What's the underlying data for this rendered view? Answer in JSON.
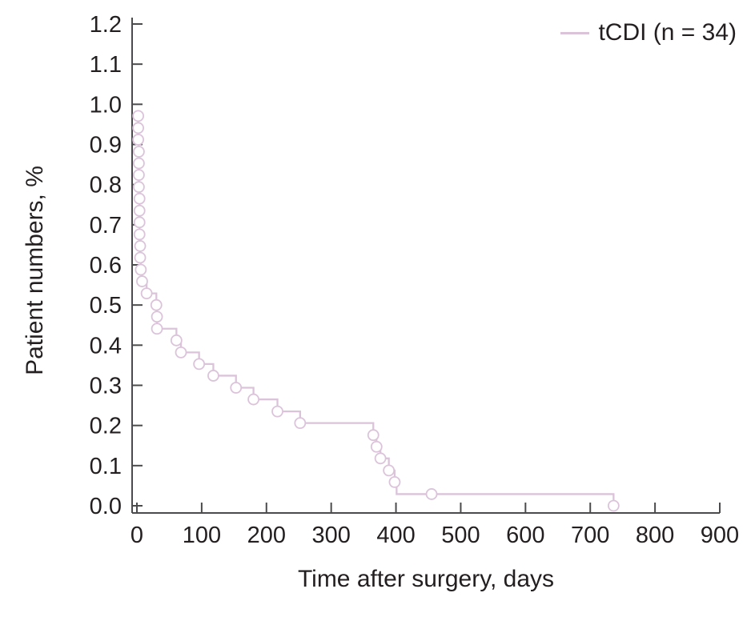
{
  "chart_data": {
    "type": "line",
    "subtype": "kaplan_meier_step",
    "title": "",
    "xlabel": "Time after surgery, days",
    "ylabel": "Patient numbers, %",
    "xlim": [
      0,
      900
    ],
    "ylim": [
      0,
      1.2
    ],
    "xticks": [
      0,
      100,
      200,
      300,
      400,
      500,
      600,
      700,
      800,
      900
    ],
    "yticks": [
      0.0,
      0.1,
      0.2,
      0.3,
      0.4,
      0.5,
      0.6,
      0.7,
      0.8,
      0.9,
      1.0,
      1.1,
      1.2
    ],
    "grid": false,
    "axis_color": "#4b4b4d",
    "text_color": "#231f20",
    "legend": {
      "position": "top-right",
      "entries": [
        {
          "label": "tCDI (n = 34)",
          "color": "#dbc4da"
        }
      ]
    },
    "series": [
      {
        "name": "tCDI",
        "n": 34,
        "color": "#dbc4da",
        "marker": "open-circle",
        "points": [
          {
            "x": 2,
            "y": 0.971,
            "marker": true
          },
          {
            "x": 2,
            "y": 0.941,
            "marker": true
          },
          {
            "x": 2,
            "y": 0.912,
            "marker": true
          },
          {
            "x": 3,
            "y": 0.882,
            "marker": true
          },
          {
            "x": 3,
            "y": 0.853,
            "marker": true
          },
          {
            "x": 3,
            "y": 0.824,
            "marker": true
          },
          {
            "x": 3,
            "y": 0.794,
            "marker": true
          },
          {
            "x": 4,
            "y": 0.765,
            "marker": true
          },
          {
            "x": 4,
            "y": 0.735,
            "marker": true
          },
          {
            "x": 4,
            "y": 0.706,
            "marker": true
          },
          {
            "x": 4,
            "y": 0.676,
            "marker": true
          },
          {
            "x": 5,
            "y": 0.647,
            "marker": true
          },
          {
            "x": 5,
            "y": 0.618,
            "marker": true
          },
          {
            "x": 6,
            "y": 0.588,
            "marker": true
          },
          {
            "x": 8,
            "y": 0.559,
            "marker": true
          },
          {
            "x": 15,
            "y": 0.529,
            "marker": true
          },
          {
            "x": 30,
            "y": 0.5,
            "marker": true
          },
          {
            "x": 31,
            "y": 0.471,
            "marker": true
          },
          {
            "x": 31,
            "y": 0.441,
            "marker": true
          },
          {
            "x": 61,
            "y": 0.412,
            "marker": true
          },
          {
            "x": 68,
            "y": 0.382,
            "marker": true
          },
          {
            "x": 96,
            "y": 0.353,
            "marker": true
          },
          {
            "x": 118,
            "y": 0.324,
            "marker": true
          },
          {
            "x": 153,
            "y": 0.294,
            "marker": true
          },
          {
            "x": 180,
            "y": 0.265,
            "marker": true
          },
          {
            "x": 217,
            "y": 0.235,
            "marker": true
          },
          {
            "x": 252,
            "y": 0.206,
            "marker": true
          },
          {
            "x": 365,
            "y": 0.176,
            "marker": true
          },
          {
            "x": 370,
            "y": 0.147,
            "marker": true
          },
          {
            "x": 376,
            "y": 0.118,
            "marker": true
          },
          {
            "x": 389,
            "y": 0.088,
            "marker": true
          },
          {
            "x": 398,
            "y": 0.059,
            "marker": true
          },
          {
            "x": 401,
            "y": 0.029,
            "marker": false
          },
          {
            "x": 736,
            "y": 0.0,
            "marker": true
          }
        ],
        "extra_markers": [
          {
            "x": 455,
            "y": 0.029
          }
        ]
      }
    ]
  }
}
